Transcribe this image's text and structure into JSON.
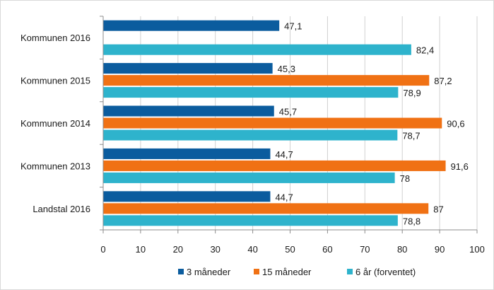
{
  "chart_data": {
    "type": "bar",
    "orientation": "horizontal",
    "categories": [
      "Kommunen 2016",
      "Kommunen 2015",
      "Kommunen 2014",
      "Kommunen 2013",
      "Landstal 2016"
    ],
    "series": [
      {
        "name": "3 måneder",
        "color": "#0b5c9e",
        "values": [
          47.1,
          45.3,
          45.7,
          44.7,
          44.7
        ],
        "labels": [
          "47,1",
          "45,3",
          "45,7",
          "44,7",
          "44,7"
        ]
      },
      {
        "name": "15 måneder",
        "color": "#f07114",
        "values": [
          null,
          87.2,
          90.6,
          91.6,
          87
        ],
        "labels": [
          "",
          "87,2",
          "90,6",
          "91,6",
          "87"
        ]
      },
      {
        "name": "6 år (forventet)",
        "color": "#2eb3cc",
        "values": [
          82.4,
          78.9,
          78.7,
          78,
          78.8
        ],
        "labels": [
          "82,4",
          "78,9",
          "78,7",
          "78",
          "78,8"
        ]
      }
    ],
    "xlim": [
      0,
      100
    ],
    "xticks": [
      0,
      10,
      20,
      30,
      40,
      50,
      60,
      70,
      80,
      90,
      100
    ],
    "grid": "vertical",
    "legend": "bottom"
  }
}
